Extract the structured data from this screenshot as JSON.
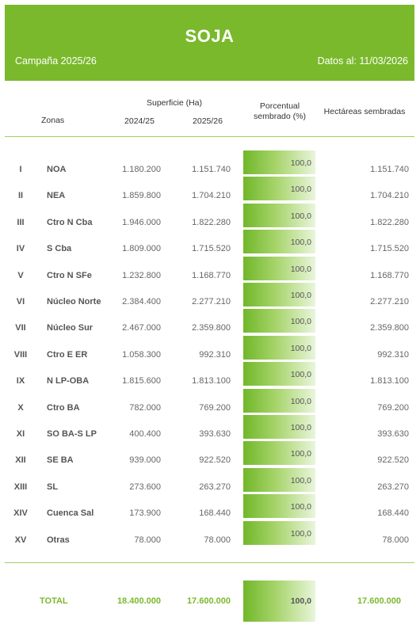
{
  "header": {
    "title": "SOJA",
    "campaign": "Campaña 2025/26",
    "date": "Datos al: 11/03/2026",
    "bg_color": "#7ab92c"
  },
  "columns": {
    "zones": "Zonas",
    "surface": "Superficie (Ha)",
    "year1": "2024/25",
    "year2": "2025/26",
    "percent_line1": "Porcentual",
    "percent_line2": "sembrado (%)",
    "hectares": "Hectáreas sembradas"
  },
  "rows": [
    {
      "roman": "I",
      "zone": "NOA",
      "v1": "1.180.200",
      "v2": "1.151.740",
      "pct": "100,0",
      "ha": "1.151.740"
    },
    {
      "roman": "II",
      "zone": "NEA",
      "v1": "1.859.800",
      "v2": "1.704.210",
      "pct": "100,0",
      "ha": "1.704.210"
    },
    {
      "roman": "III",
      "zone": "Ctro N Cba",
      "v1": "1.946.000",
      "v2": "1.822.280",
      "pct": "100,0",
      "ha": "1.822.280"
    },
    {
      "roman": "IV",
      "zone": "S Cba",
      "v1": "1.809.000",
      "v2": "1.715.520",
      "pct": "100,0",
      "ha": "1.715.520"
    },
    {
      "roman": "V",
      "zone": "Ctro N SFe",
      "v1": "1.232.800",
      "v2": "1.168.770",
      "pct": "100,0",
      "ha": "1.168.770"
    },
    {
      "roman": "VI",
      "zone": "Núcleo Norte",
      "v1": "2.384.400",
      "v2": "2.277.210",
      "pct": "100,0",
      "ha": "2.277.210"
    },
    {
      "roman": "VII",
      "zone": "Núcleo Sur",
      "v1": "2.467.000",
      "v2": "2.359.800",
      "pct": "100,0",
      "ha": "2.359.800"
    },
    {
      "roman": "VIII",
      "zone": "Ctro E ER",
      "v1": "1.058.300",
      "v2": "992.310",
      "pct": "100,0",
      "ha": "992.310"
    },
    {
      "roman": "IX",
      "zone": "N LP-OBA",
      "v1": "1.815.600",
      "v2": "1.813.100",
      "pct": "100,0",
      "ha": "1.813.100"
    },
    {
      "roman": "X",
      "zone": "Ctro BA",
      "v1": "782.000",
      "v2": "769.200",
      "pct": "100,0",
      "ha": "769.200"
    },
    {
      "roman": "XI",
      "zone": "SO BA-S LP",
      "v1": "400.400",
      "v2": "393.630",
      "pct": "100,0",
      "ha": "393.630"
    },
    {
      "roman": "XII",
      "zone": "SE BA",
      "v1": "939.000",
      "v2": "922.520",
      "pct": "100,0",
      "ha": "922.520"
    },
    {
      "roman": "XIII",
      "zone": "SL",
      "v1": "273.600",
      "v2": "263.270",
      "pct": "100,0",
      "ha": "263.270"
    },
    {
      "roman": "XIV",
      "zone": "Cuenca Sal",
      "v1": "173.900",
      "v2": "168.440",
      "pct": "100,0",
      "ha": "168.440"
    },
    {
      "roman": "XV",
      "zone": "Otras",
      "v1": "78.000",
      "v2": "78.000",
      "pct": "100,0",
      "ha": "78.000"
    }
  ],
  "total": {
    "label": "TOTAL",
    "v1": "18.400.000",
    "v2": "17.600.000",
    "pct": "100,0",
    "ha": "17.600.000"
  }
}
